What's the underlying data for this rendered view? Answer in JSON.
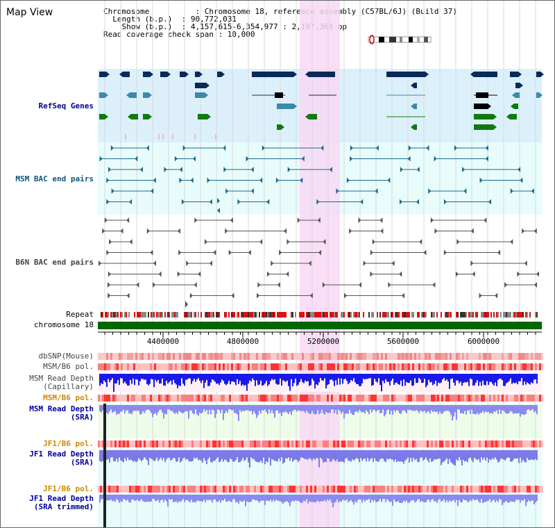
{
  "title": "Map View",
  "info": {
    "chromosome": "Chromosome          : Chromosome 18, reference assembly (C57BL/6J) (Build 37)",
    "length": "  Length (b.p.)  : 90,772,031",
    "show": "    Show (b.p.)  : 4,157,615-6,354,977 : 2,197,363 bp",
    "span": "Read coverage check span : 10,000"
  },
  "ruler": {
    "ticks": [
      "4400000",
      "4800000",
      "5200000",
      "5600000",
      "6000000"
    ]
  },
  "colors": {
    "genes_bg": "#dcf0fb",
    "bac_bg": "#e8fcfc",
    "highlight": "#f8d8f4",
    "refseq_label": "#000099",
    "msm_bac_label": "#115577",
    "b6n_label": "#444444",
    "track_blue": "#000099",
    "track_orange": "#cc8800",
    "chromosome_green": "#006600"
  },
  "tracks": [
    {
      "id": "refseq",
      "label": "RefSeq Genes"
    },
    {
      "id": "msm-bac",
      "label": "MSM BAC end pairs"
    },
    {
      "id": "b6n-bac",
      "label": "B6N BAC end pairs"
    },
    {
      "id": "repeat",
      "label": "Repeat"
    },
    {
      "id": "chromosome",
      "label": "chromosome 18"
    },
    {
      "id": "dbsnp",
      "label": "dbSNP(Mouse)"
    },
    {
      "id": "msm-pol-1",
      "label": "MSM/B6 pol."
    },
    {
      "id": "msm-depth-cap",
      "label": "MSM Read Depth\n(Capillary)"
    },
    {
      "id": "msm-pol-2",
      "label": "MSM/B6 pol."
    },
    {
      "id": "msm-depth-sra",
      "label": "MSM Read Depth\n(SRA)"
    },
    {
      "id": "jf1-pol-1",
      "label": "JF1/B6 pol."
    },
    {
      "id": "jf1-depth-sra",
      "label": "JF1 Read Depth\n(SRA)"
    },
    {
      "id": "jf1-pol-2",
      "label": "JF1/B6 pol."
    },
    {
      "id": "jf1-depth-trim",
      "label": "JF1 Read Depth\n(SRA trimmed)"
    }
  ]
}
